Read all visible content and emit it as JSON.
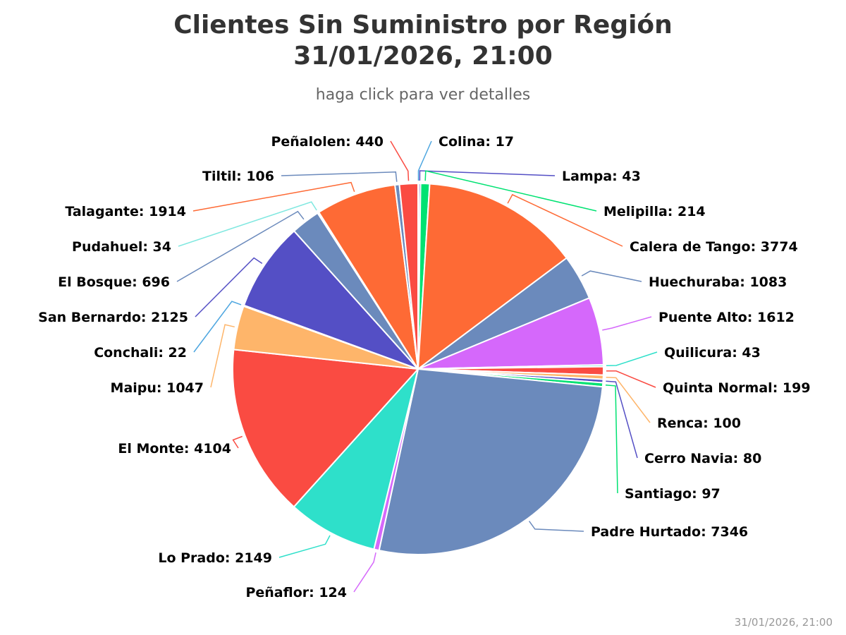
{
  "title_line1": "Clientes Sin Suministro por Región",
  "title_line2": "31/01/2026, 21:00",
  "subtitle": "haga click para ver detalles",
  "credit": "31/01/2026, 21:00",
  "chart_data": {
    "type": "pie",
    "title": "Clientes Sin Suministro por Región 31/01/2026, 21:00",
    "subtitle": "haga click para ver detalles",
    "slices": [
      {
        "name": "Colina",
        "value": 17,
        "color": "#4da6e0"
      },
      {
        "name": "Lampa",
        "value": 43,
        "color": "#544fc5"
      },
      {
        "name": "Melipilla",
        "value": 214,
        "color": "#00e272"
      },
      {
        "name": "Calera de Tango",
        "value": 3774,
        "color": "#fe6a35"
      },
      {
        "name": "Huechuraba",
        "value": 1083,
        "color": "#6b8abc"
      },
      {
        "name": "Puente Alto",
        "value": 1612,
        "color": "#d568fb"
      },
      {
        "name": "Quilicura",
        "value": 43,
        "color": "#2ee0ca"
      },
      {
        "name": "Quinta Normal",
        "value": 199,
        "color": "#fa4b42"
      },
      {
        "name": "Renca",
        "value": 100,
        "color": "#feb56a"
      },
      {
        "name": "Cerro Navia",
        "value": 80,
        "color": "#544fc5"
      },
      {
        "name": "Santiago",
        "value": 97,
        "color": "#00e272"
      },
      {
        "name": "Padre Hurtado",
        "value": 7346,
        "color": "#6b8abc"
      },
      {
        "name": "Peñaflor",
        "value": 124,
        "color": "#d568fb"
      },
      {
        "name": "Lo Prado",
        "value": 2149,
        "color": "#2ee0ca"
      },
      {
        "name": "El Monte",
        "value": 4104,
        "color": "#fa4b42"
      },
      {
        "name": "Maipu",
        "value": 1047,
        "color": "#feb56a"
      },
      {
        "name": "Conchali",
        "value": 22,
        "color": "#4da6e0"
      },
      {
        "name": "San Bernardo",
        "value": 2125,
        "color": "#544fc5"
      },
      {
        "name": "El Bosque",
        "value": 696,
        "color": "#6b8abc"
      },
      {
        "name": "Pudahuel",
        "value": 34,
        "color": "#80e8e0"
      },
      {
        "name": "Talagante",
        "value": 1914,
        "color": "#fe6a35"
      },
      {
        "name": "Tiltil",
        "value": 106,
        "color": "#6b8abc"
      },
      {
        "name": "Peñalolen",
        "value": 440,
        "color": "#fa4b42"
      }
    ]
  }
}
